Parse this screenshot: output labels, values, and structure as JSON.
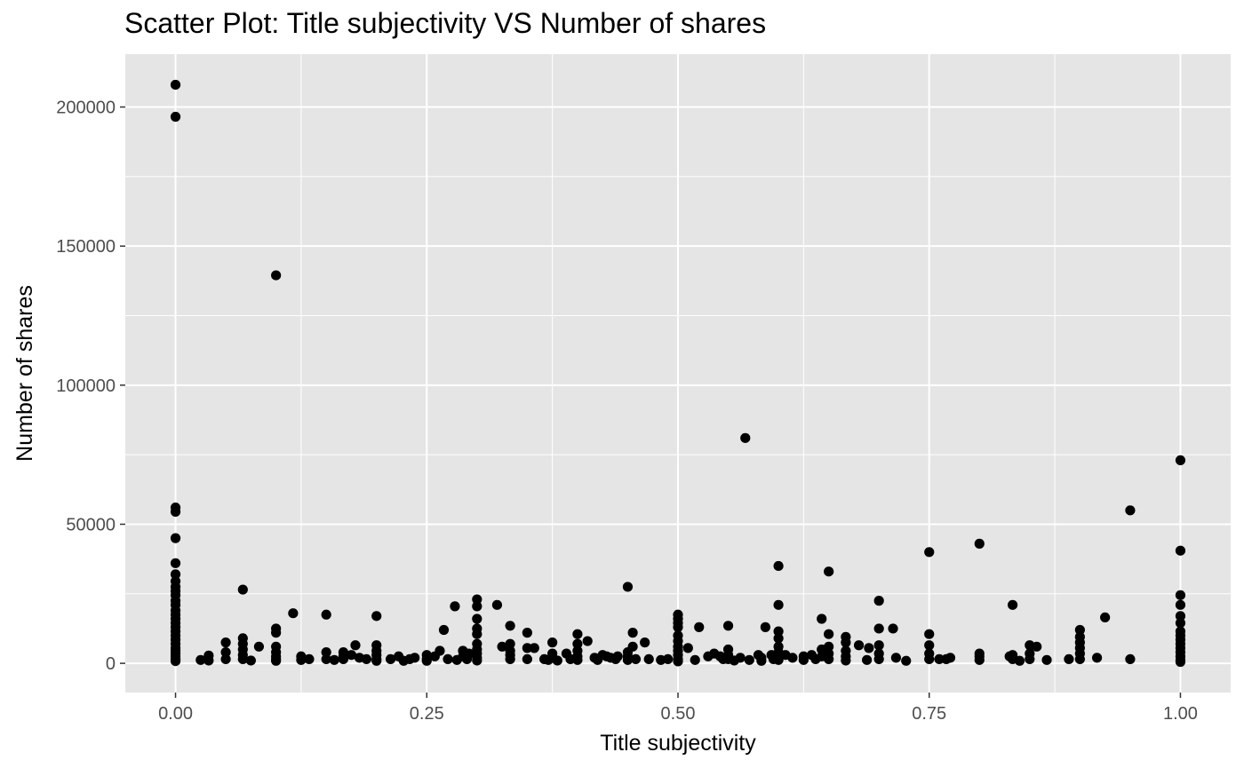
{
  "chart_data": {
    "type": "scatter",
    "title": "Scatter Plot: Title subjectivity VS Number of shares",
    "xlabel": "Title subjectivity",
    "ylabel": "Number of shares",
    "xlim": [
      -0.05,
      1.05
    ],
    "ylim": [
      -10500,
      219000
    ],
    "x_ticks": [
      0.0,
      0.25,
      0.5,
      0.75,
      1.0
    ],
    "x_tick_labels": [
      "0.00",
      "0.25",
      "0.50",
      "0.75",
      "1.00"
    ],
    "y_ticks": [
      0,
      50000,
      100000,
      150000,
      200000
    ],
    "y_tick_labels": [
      "0",
      "50000",
      "100000",
      "150000",
      "200000"
    ],
    "grid": true,
    "panel_color": "#e5e5e5",
    "grid_color": "#ffffff",
    "point_color": "#000000",
    "points": [
      [
        0,
        208000
      ],
      [
        0,
        196500
      ],
      [
        0,
        56000
      ],
      [
        0,
        54500
      ],
      [
        0,
        45000
      ],
      [
        0,
        36000
      ],
      [
        0,
        32000
      ],
      [
        0,
        29500
      ],
      [
        0,
        27500
      ],
      [
        0,
        26000
      ],
      [
        0,
        24500
      ],
      [
        0,
        22500
      ],
      [
        0,
        21000
      ],
      [
        0,
        19000
      ],
      [
        0,
        17500
      ],
      [
        0,
        16000
      ],
      [
        0,
        14500
      ],
      [
        0,
        13000
      ],
      [
        0,
        11500
      ],
      [
        0,
        10000
      ],
      [
        0,
        8500
      ],
      [
        0,
        7000
      ],
      [
        0,
        5500
      ],
      [
        0,
        4500
      ],
      [
        0,
        3500
      ],
      [
        0,
        2500
      ],
      [
        0,
        1500
      ],
      [
        0,
        800
      ],
      [
        0.025,
        1200
      ],
      [
        0.033,
        2800
      ],
      [
        0.033,
        1000
      ],
      [
        0.05,
        7500
      ],
      [
        0.05,
        4000
      ],
      [
        0.05,
        1500
      ],
      [
        0.067,
        26500
      ],
      [
        0.067,
        9000
      ],
      [
        0.067,
        7000
      ],
      [
        0.067,
        5000
      ],
      [
        0.067,
        3000
      ],
      [
        0.067,
        1500
      ],
      [
        0.075,
        1000
      ],
      [
        0.083,
        6000
      ],
      [
        0.1,
        139500
      ],
      [
        0.1,
        12500
      ],
      [
        0.1,
        11000
      ],
      [
        0.1,
        6000
      ],
      [
        0.1,
        4000
      ],
      [
        0.1,
        2500
      ],
      [
        0.1,
        1500
      ],
      [
        0.1,
        900
      ],
      [
        0.117,
        18000
      ],
      [
        0.125,
        2500
      ],
      [
        0.125,
        1200
      ],
      [
        0.133,
        1500
      ],
      [
        0.15,
        17500
      ],
      [
        0.15,
        4000
      ],
      [
        0.15,
        1500
      ],
      [
        0.158,
        1200
      ],
      [
        0.167,
        4000
      ],
      [
        0.167,
        2500
      ],
      [
        0.167,
        1500
      ],
      [
        0.175,
        3000
      ],
      [
        0.179,
        6500
      ],
      [
        0.183,
        2000
      ],
      [
        0.19,
        1500
      ],
      [
        0.2,
        17000
      ],
      [
        0.2,
        6500
      ],
      [
        0.2,
        4500
      ],
      [
        0.2,
        3000
      ],
      [
        0.2,
        1500
      ],
      [
        0.2,
        900
      ],
      [
        0.214,
        1500
      ],
      [
        0.222,
        2500
      ],
      [
        0.227,
        900
      ],
      [
        0.233,
        1500
      ],
      [
        0.238,
        2000
      ],
      [
        0.25,
        3000
      ],
      [
        0.25,
        1500
      ],
      [
        0.25,
        900
      ],
      [
        0.258,
        2500
      ],
      [
        0.263,
        4500
      ],
      [
        0.267,
        12000
      ],
      [
        0.271,
        1500
      ],
      [
        0.278,
        20500
      ],
      [
        0.28,
        1200
      ],
      [
        0.286,
        4500
      ],
      [
        0.286,
        2500
      ],
      [
        0.29,
        1500
      ],
      [
        0.292,
        3500
      ],
      [
        0.3,
        23000
      ],
      [
        0.3,
        20500
      ],
      [
        0.3,
        16000
      ],
      [
        0.3,
        12500
      ],
      [
        0.3,
        10500
      ],
      [
        0.3,
        7000
      ],
      [
        0.3,
        5000
      ],
      [
        0.3,
        3500
      ],
      [
        0.3,
        2000
      ],
      [
        0.3,
        1000
      ],
      [
        0.32,
        21000
      ],
      [
        0.325,
        6000
      ],
      [
        0.333,
        13500
      ],
      [
        0.333,
        7000
      ],
      [
        0.333,
        4500
      ],
      [
        0.333,
        3000
      ],
      [
        0.333,
        1500
      ],
      [
        0.35,
        11000
      ],
      [
        0.35,
        5500
      ],
      [
        0.35,
        1500
      ],
      [
        0.357,
        5500
      ],
      [
        0.367,
        1500
      ],
      [
        0.371,
        1200
      ],
      [
        0.375,
        7500
      ],
      [
        0.375,
        3500
      ],
      [
        0.375,
        2000
      ],
      [
        0.38,
        1000
      ],
      [
        0.389,
        3500
      ],
      [
        0.393,
        1500
      ],
      [
        0.4,
        10500
      ],
      [
        0.4,
        7000
      ],
      [
        0.4,
        4500
      ],
      [
        0.4,
        2500
      ],
      [
        0.4,
        1200
      ],
      [
        0.41,
        8000
      ],
      [
        0.417,
        2000
      ],
      [
        0.42,
        1200
      ],
      [
        0.425,
        3000
      ],
      [
        0.429,
        2500
      ],
      [
        0.433,
        2000
      ],
      [
        0.438,
        1500
      ],
      [
        0.44,
        2500
      ],
      [
        0.45,
        27500
      ],
      [
        0.45,
        4000
      ],
      [
        0.45,
        2500
      ],
      [
        0.45,
        1200
      ],
      [
        0.455,
        11000
      ],
      [
        0.455,
        6000
      ],
      [
        0.458,
        1500
      ],
      [
        0.467,
        7500
      ],
      [
        0.471,
        1500
      ],
      [
        0.483,
        1200
      ],
      [
        0.49,
        1500
      ],
      [
        0.5,
        17500
      ],
      [
        0.5,
        16000
      ],
      [
        0.5,
        14500
      ],
      [
        0.5,
        13000
      ],
      [
        0.5,
        10000
      ],
      [
        0.5,
        8000
      ],
      [
        0.5,
        6000
      ],
      [
        0.5,
        4500
      ],
      [
        0.5,
        3000
      ],
      [
        0.5,
        1500
      ],
      [
        0.5,
        700
      ],
      [
        0.51,
        5500
      ],
      [
        0.517,
        1200
      ],
      [
        0.521,
        13000
      ],
      [
        0.53,
        2500
      ],
      [
        0.536,
        3500
      ],
      [
        0.542,
        2500
      ],
      [
        0.545,
        1500
      ],
      [
        0.55,
        13500
      ],
      [
        0.55,
        5000
      ],
      [
        0.55,
        3000
      ],
      [
        0.55,
        1500
      ],
      [
        0.556,
        1000
      ],
      [
        0.562,
        2000
      ],
      [
        0.567,
        81000
      ],
      [
        0.571,
        1200
      ],
      [
        0.58,
        3000
      ],
      [
        0.583,
        2000
      ],
      [
        0.583,
        900
      ],
      [
        0.587,
        13000
      ],
      [
        0.593,
        3000
      ],
      [
        0.595,
        1500
      ],
      [
        0.6,
        35000
      ],
      [
        0.6,
        21000
      ],
      [
        0.6,
        11500
      ],
      [
        0.6,
        9000
      ],
      [
        0.6,
        6000
      ],
      [
        0.6,
        4000
      ],
      [
        0.6,
        2500
      ],
      [
        0.6,
        1200
      ],
      [
        0.607,
        3000
      ],
      [
        0.614,
        2000
      ],
      [
        0.625,
        2500
      ],
      [
        0.625,
        1200
      ],
      [
        0.633,
        3000
      ],
      [
        0.637,
        1500
      ],
      [
        0.643,
        16000
      ],
      [
        0.643,
        5000
      ],
      [
        0.643,
        2500
      ],
      [
        0.65,
        33000
      ],
      [
        0.65,
        10500
      ],
      [
        0.65,
        6000
      ],
      [
        0.65,
        3500
      ],
      [
        0.65,
        1500
      ],
      [
        0.667,
        9500
      ],
      [
        0.667,
        7500
      ],
      [
        0.667,
        4500
      ],
      [
        0.667,
        2500
      ],
      [
        0.667,
        1000
      ],
      [
        0.68,
        6500
      ],
      [
        0.69,
        5500
      ],
      [
        0.688,
        1200
      ],
      [
        0.7,
        22500
      ],
      [
        0.7,
        12500
      ],
      [
        0.7,
        6500
      ],
      [
        0.7,
        3500
      ],
      [
        0.7,
        1500
      ],
      [
        0.714,
        12500
      ],
      [
        0.717,
        2000
      ],
      [
        0.727,
        900
      ],
      [
        0.75,
        40000
      ],
      [
        0.75,
        10500
      ],
      [
        0.75,
        6500
      ],
      [
        0.75,
        3500
      ],
      [
        0.75,
        1500
      ],
      [
        0.76,
        1500
      ],
      [
        0.767,
        1500
      ],
      [
        0.771,
        2000
      ],
      [
        0.8,
        43000
      ],
      [
        0.8,
        3500
      ],
      [
        0.8,
        2500
      ],
      [
        0.8,
        1200
      ],
      [
        0.83,
        2500
      ],
      [
        0.833,
        21000
      ],
      [
        0.833,
        3000
      ],
      [
        0.833,
        1500
      ],
      [
        0.84,
        900
      ],
      [
        0.85,
        6500
      ],
      [
        0.85,
        3500
      ],
      [
        0.85,
        1500
      ],
      [
        0.857,
        6000
      ],
      [
        0.867,
        1200
      ],
      [
        0.889,
        1500
      ],
      [
        0.9,
        12000
      ],
      [
        0.9,
        9500
      ],
      [
        0.9,
        7500
      ],
      [
        0.9,
        5500
      ],
      [
        0.9,
        3500
      ],
      [
        0.9,
        1500
      ],
      [
        0.917,
        2000
      ],
      [
        0.925,
        16500
      ],
      [
        0.95,
        55000
      ],
      [
        0.95,
        1500
      ],
      [
        1,
        73000
      ],
      [
        1,
        40500
      ],
      [
        1,
        24500
      ],
      [
        1,
        21000
      ],
      [
        1,
        17000
      ],
      [
        1,
        14500
      ],
      [
        1,
        11500
      ],
      [
        1,
        10000
      ],
      [
        1,
        8500
      ],
      [
        1,
        7000
      ],
      [
        1,
        5500
      ],
      [
        1,
        4000
      ],
      [
        1,
        2500
      ],
      [
        1,
        1200
      ],
      [
        1,
        500
      ]
    ]
  }
}
